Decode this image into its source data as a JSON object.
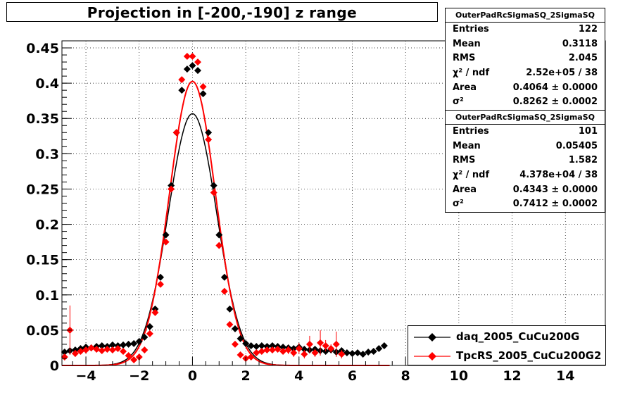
{
  "title": "Projection in [-200,-190] z range",
  "stats": [
    {
      "name": "OuterPadRcSigmaSQ_2SigmaSQ",
      "rows": [
        {
          "label": "Entries",
          "value": "122"
        },
        {
          "label": "Mean",
          "value": "0.3118"
        },
        {
          "label": "RMS",
          "value": "2.045"
        },
        {
          "label": "χ² / ndf",
          "value": "2.52e+05 / 38"
        },
        {
          "label": "Area",
          "value": "0.4064 ± 0.0000"
        },
        {
          "label": "σ²",
          "value": "0.8262 ± 0.0002"
        }
      ]
    },
    {
      "name": "OuterPadRcSigmaSQ_2SigmaSQ",
      "rows": [
        {
          "label": "Entries",
          "value": "101"
        },
        {
          "label": "Mean",
          "value": "0.05405"
        },
        {
          "label": "RMS",
          "value": "1.582"
        },
        {
          "label": "χ² / ndf",
          "value": "4.378e+04 / 38"
        },
        {
          "label": "Area",
          "value": "0.4343 ± 0.0000"
        },
        {
          "label": "σ²",
          "value": "0.7412 ± 0.0002"
        }
      ]
    }
  ],
  "legend": [
    {
      "label": "daq_2005_CuCu200G",
      "color": "#000000"
    },
    {
      "label": "TpcRS_2005_CuCu200G2",
      "color": "#ff0000"
    }
  ],
  "chart_data": {
    "type": "scatter",
    "title": "Projection in [-200,-190] z range",
    "xlim": [
      -4.9,
      15.5
    ],
    "ylim": [
      0,
      0.46
    ],
    "grid": true,
    "x_ticks": [
      "−4",
      "−2",
      "0",
      "2",
      "4",
      "6",
      "8",
      "10",
      "12",
      "14"
    ],
    "x_tick_values": [
      -4,
      -2,
      0,
      2,
      4,
      6,
      8,
      10,
      12,
      14
    ],
    "y_ticks": [
      "0",
      "0.05",
      "0.1",
      "0.15",
      "0.2",
      "0.25",
      "0.3",
      "0.35",
      "0.4",
      "0.45"
    ],
    "y_tick_values": [
      0,
      0.05,
      0.1,
      0.15,
      0.2,
      0.25,
      0.3,
      0.35,
      0.4,
      0.45
    ],
    "series": [
      {
        "name": "daq_2005_CuCu200G",
        "color": "#000000",
        "fit_sigma2": 0.8262,
        "fit_area": 0.4064,
        "x": [
          -4.8,
          -4.6,
          -4.4,
          -4.2,
          -4.0,
          -3.8,
          -3.6,
          -3.4,
          -3.2,
          -3.0,
          -2.8,
          -2.6,
          -2.4,
          -2.2,
          -2.0,
          -1.8,
          -1.6,
          -1.4,
          -1.2,
          -1.0,
          -0.8,
          -0.6,
          -0.4,
          -0.2,
          0.0,
          0.2,
          0.4,
          0.6,
          0.8,
          1.0,
          1.2,
          1.4,
          1.6,
          1.8,
          2.0,
          2.2,
          2.4,
          2.6,
          2.8,
          3.0,
          3.2,
          3.4,
          3.6,
          3.8,
          4.0,
          4.2,
          4.4,
          4.6,
          4.8,
          5.0,
          5.2,
          5.4,
          5.6,
          5.8,
          6.0,
          6.2,
          6.4,
          6.6,
          6.8,
          7.0,
          7.2
        ],
        "y": [
          0.019,
          0.021,
          0.022,
          0.024,
          0.026,
          0.025,
          0.027,
          0.028,
          0.027,
          0.029,
          0.028,
          0.029,
          0.03,
          0.031,
          0.034,
          0.04,
          0.055,
          0.08,
          0.125,
          0.185,
          0.255,
          0.33,
          0.39,
          0.42,
          0.425,
          0.418,
          0.385,
          0.33,
          0.255,
          0.185,
          0.125,
          0.08,
          0.052,
          0.038,
          0.031,
          0.028,
          0.027,
          0.028,
          0.027,
          0.028,
          0.027,
          0.026,
          0.025,
          0.024,
          0.026,
          0.023,
          0.022,
          0.023,
          0.021,
          0.02,
          0.022,
          0.019,
          0.021,
          0.018,
          0.017,
          0.018,
          0.016,
          0.019,
          0.02,
          0.024,
          0.028
        ]
      },
      {
        "name": "TpcRS_2005_CuCu200G2",
        "color": "#ff0000",
        "fit_sigma2": 0.7412,
        "fit_area": 0.4343,
        "x": [
          -4.8,
          -4.6,
          -4.4,
          -4.2,
          -4.0,
          -3.8,
          -3.6,
          -3.4,
          -3.2,
          -3.0,
          -2.8,
          -2.6,
          -2.4,
          -2.2,
          -2.0,
          -1.8,
          -1.6,
          -1.4,
          -1.2,
          -1.0,
          -0.8,
          -0.6,
          -0.4,
          -0.2,
          0.0,
          0.2,
          0.4,
          0.6,
          0.8,
          1.0,
          1.2,
          1.4,
          1.6,
          1.8,
          2.0,
          2.2,
          2.4,
          2.6,
          2.8,
          3.0,
          3.2,
          3.4,
          3.6,
          3.8,
          4.0,
          4.2,
          4.4,
          4.6,
          4.8,
          5.0,
          5.2,
          5.4,
          5.6
        ],
        "y": [
          0.012,
          0.05,
          0.017,
          0.02,
          0.022,
          0.025,
          0.023,
          0.021,
          0.023,
          0.022,
          0.024,
          0.02,
          0.014,
          0.008,
          0.012,
          0.022,
          0.045,
          0.075,
          0.115,
          0.175,
          0.25,
          0.33,
          0.405,
          0.438,
          0.438,
          0.43,
          0.395,
          0.32,
          0.245,
          0.17,
          0.105,
          0.058,
          0.03,
          0.015,
          0.01,
          0.012,
          0.018,
          0.02,
          0.022,
          0.022,
          0.023,
          0.02,
          0.022,
          0.018,
          0.024,
          0.016,
          0.03,
          0.018,
          0.032,
          0.028,
          0.024,
          0.03,
          0.016
        ],
        "err": [
          0.004,
          0.035,
          0.005,
          0.004,
          0.004,
          0.004,
          0.004,
          0.004,
          0.004,
          0.004,
          0.004,
          0.004,
          0.004,
          0.004,
          0.004,
          0.004,
          0.004,
          0.004,
          0.004,
          0.004,
          0.004,
          0.004,
          0.004,
          0.004,
          0.004,
          0.004,
          0.004,
          0.004,
          0.004,
          0.004,
          0.004,
          0.004,
          0.004,
          0.004,
          0.004,
          0.004,
          0.004,
          0.004,
          0.004,
          0.004,
          0.004,
          0.004,
          0.006,
          0.006,
          0.008,
          0.006,
          0.012,
          0.006,
          0.018,
          0.008,
          0.006,
          0.018,
          0.006
        ]
      }
    ]
  }
}
